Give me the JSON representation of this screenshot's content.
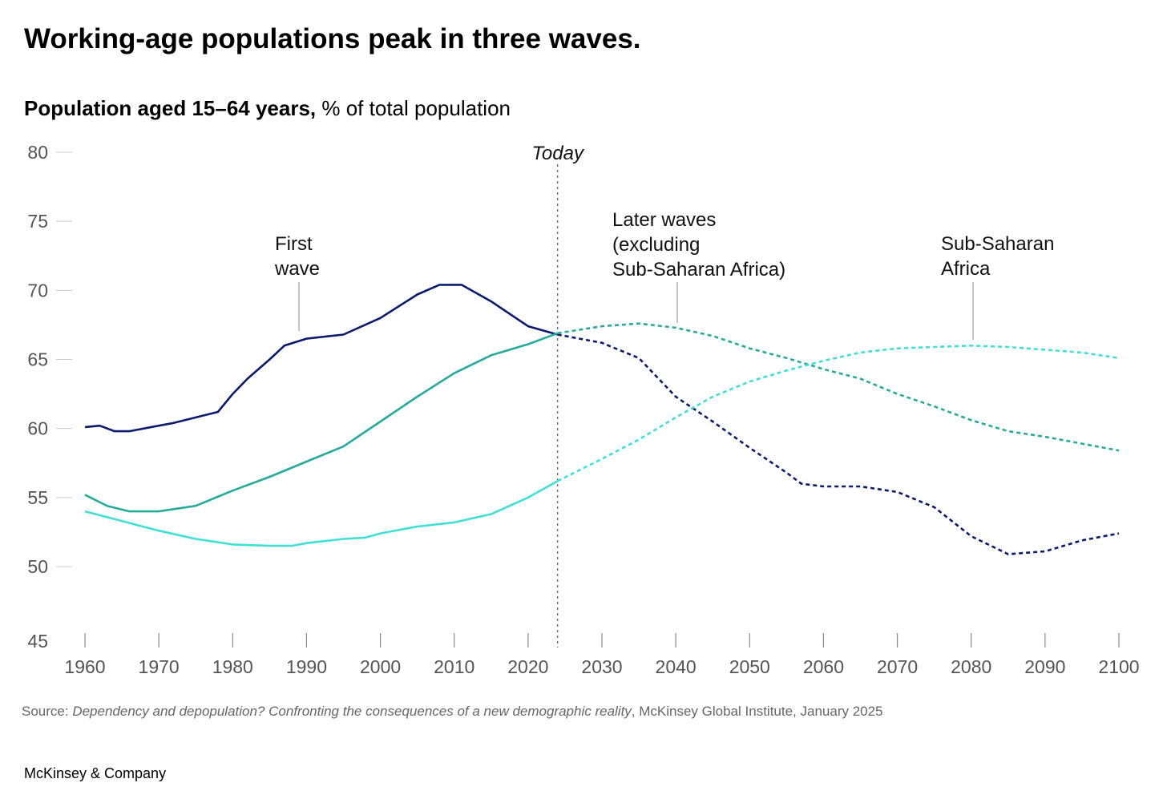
{
  "title": "Working-age populations peak in three waves.",
  "subtitle_bold": "Population aged 15–64 years,",
  "subtitle_rest": " % of total population",
  "today_label": "Today",
  "source_prefix": "Source: ",
  "source_title": "Dependency and depopulation? Confronting the consequences of a new demographic reality",
  "source_suffix": ", McKinsey Global Institute, January 2025",
  "brand": "McKinsey & Company",
  "chart_data": {
    "type": "line",
    "title": "Population aged 15–64 years, % of total population",
    "xlabel": "",
    "ylabel": "% of total population",
    "xlim": [
      1960,
      2100
    ],
    "ylim": [
      45,
      80
    ],
    "xticks": [
      1960,
      1970,
      1980,
      1990,
      2000,
      2010,
      2020,
      2030,
      2040,
      2050,
      2060,
      2070,
      2080,
      2090,
      2100
    ],
    "yticks": [
      45,
      50,
      55,
      60,
      65,
      70,
      75,
      80
    ],
    "today_year": 2024,
    "projection_style": "dashed after Today",
    "series": [
      {
        "name": "First wave",
        "label_lines": [
          "First",
          "wave"
        ],
        "color": "#0b1a6e",
        "x": [
          1960,
          1962,
          1964,
          1966,
          1970,
          1972,
          1975,
          1978,
          1980,
          1982,
          1985,
          1987,
          1990,
          1995,
          2000,
          2005,
          2008,
          2011,
          2015,
          2020,
          2024,
          2030,
          2035,
          2040,
          2045,
          2050,
          2055,
          2057,
          2060,
          2065,
          2070,
          2075,
          2080,
          2085,
          2090,
          2095,
          2100
        ],
        "y": [
          60.1,
          60.2,
          59.8,
          59.8,
          60.2,
          60.4,
          60.8,
          61.2,
          62.5,
          63.6,
          65.0,
          66.0,
          66.5,
          66.8,
          68.0,
          69.7,
          70.4,
          70.4,
          69.2,
          67.4,
          66.8,
          66.2,
          65.1,
          62.3,
          60.5,
          58.6,
          56.8,
          56.0,
          55.8,
          55.8,
          55.4,
          54.3,
          52.2,
          50.9,
          51.1,
          51.9,
          52.4
        ]
      },
      {
        "name": "Later waves (excluding Sub-Saharan Africa)",
        "label_lines": [
          "Later waves",
          "(excluding",
          "Sub-Saharan Africa)"
        ],
        "color": "#26ab9b",
        "x": [
          1960,
          1963,
          1966,
          1970,
          1975,
          1980,
          1985,
          1990,
          1995,
          2000,
          2005,
          2010,
          2015,
          2020,
          2024,
          2030,
          2035,
          2040,
          2045,
          2050,
          2055,
          2060,
          2065,
          2070,
          2075,
          2080,
          2085,
          2090,
          2095,
          2100
        ],
        "y": [
          55.2,
          54.4,
          54.0,
          54.0,
          54.4,
          55.5,
          56.5,
          57.6,
          58.7,
          60.5,
          62.3,
          64.0,
          65.3,
          66.1,
          66.9,
          67.4,
          67.6,
          67.3,
          66.7,
          65.8,
          65.1,
          64.3,
          63.6,
          62.5,
          61.6,
          60.6,
          59.8,
          59.4,
          58.9,
          58.4
        ]
      },
      {
        "name": "Sub-Saharan Africa",
        "label_lines": [
          "Sub-Saharan",
          "Africa"
        ],
        "color": "#3fe0d6",
        "x": [
          1960,
          1965,
          1970,
          1975,
          1980,
          1985,
          1988,
          1990,
          1995,
          1998,
          2000,
          2005,
          2010,
          2015,
          2020,
          2024,
          2030,
          2035,
          2040,
          2045,
          2050,
          2055,
          2060,
          2065,
          2070,
          2075,
          2080,
          2085,
          2090,
          2095,
          2100
        ],
        "y": [
          54.0,
          53.3,
          52.6,
          52.0,
          51.6,
          51.5,
          51.5,
          51.7,
          52.0,
          52.1,
          52.4,
          52.9,
          53.2,
          53.8,
          55.0,
          56.2,
          57.8,
          59.2,
          60.8,
          62.3,
          63.4,
          64.2,
          64.9,
          65.5,
          65.8,
          65.9,
          66.0,
          65.9,
          65.7,
          65.5,
          65.1
        ]
      }
    ]
  }
}
